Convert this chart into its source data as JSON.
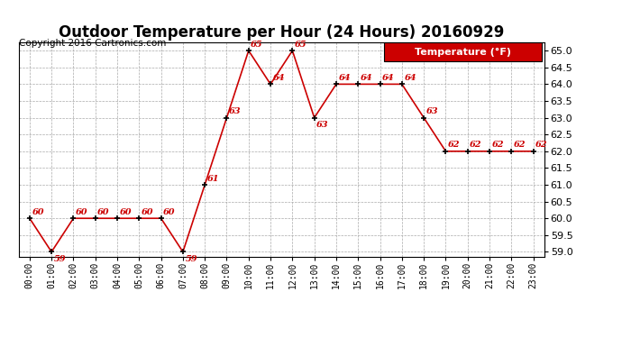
{
  "title": "Outdoor Temperature per Hour (24 Hours) 20160929",
  "copyright_text": "Copyright 2016 Cartronics.com",
  "legend_label": "Temperature (°F)",
  "hours": [
    0,
    1,
    2,
    3,
    4,
    5,
    6,
    7,
    8,
    9,
    10,
    11,
    12,
    13,
    14,
    15,
    16,
    17,
    18,
    19,
    20,
    21,
    22,
    23
  ],
  "temperatures": [
    60,
    59,
    60,
    60,
    60,
    60,
    60,
    59,
    61,
    63,
    65,
    64,
    65,
    63,
    64,
    64,
    64,
    64,
    63,
    62,
    62,
    62,
    62,
    62
  ],
  "x_labels": [
    "00:00",
    "01:00",
    "02:00",
    "03:00",
    "04:00",
    "05:00",
    "06:00",
    "07:00",
    "08:00",
    "09:00",
    "10:00",
    "11:00",
    "12:00",
    "13:00",
    "14:00",
    "15:00",
    "16:00",
    "17:00",
    "18:00",
    "19:00",
    "20:00",
    "21:00",
    "22:00",
    "23:00"
  ],
  "ylim": [
    58.85,
    65.25
  ],
  "yticks": [
    59.0,
    59.5,
    60.0,
    60.5,
    61.0,
    61.5,
    62.0,
    62.5,
    63.0,
    63.5,
    64.0,
    64.5,
    65.0
  ],
  "line_color": "#cc0000",
  "marker_color": "#000000",
  "label_color": "#cc0000",
  "legend_bg": "#cc0000",
  "legend_text_color": "#ffffff",
  "title_fontsize": 12,
  "label_fontsize": 8,
  "copyright_fontsize": 7.5,
  "background_color": "#ffffff",
  "grid_color": "#aaaaaa"
}
